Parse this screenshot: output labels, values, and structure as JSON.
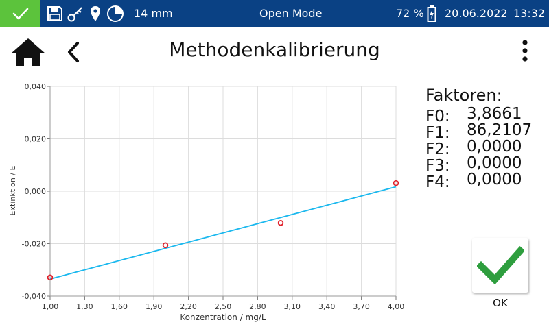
{
  "status_bar": {
    "ok_icon": "check-icon",
    "icons": [
      "save-icon",
      "key-icon",
      "location-pin-icon",
      "timer-pie-icon"
    ],
    "cuvette": "14 mm",
    "mode": "Open Mode",
    "battery_percent": "72 %",
    "battery_icon": "battery-charging-icon",
    "date": "20.06.2022",
    "time": "13:32",
    "colors": {
      "bar": "#0a4184",
      "ok": "#5cc33c"
    }
  },
  "header": {
    "title": "Methodenkalibrierung",
    "home_icon": "home-icon",
    "back_icon": "back-chevron-icon",
    "menu_icon": "more-vertical-icon"
  },
  "factors": {
    "title": "Faktoren:",
    "items": [
      {
        "label": "F0:",
        "value": "3,8661"
      },
      {
        "label": "F1:",
        "value": "86,2107"
      },
      {
        "label": "F2:",
        "value": "0,0000"
      },
      {
        "label": "F3:",
        "value": "0,0000"
      },
      {
        "label": "F4:",
        "value": "0,0000"
      }
    ]
  },
  "ok_button": {
    "label": "OK",
    "icon": "checkmark-icon",
    "color": "#2e9e3e"
  },
  "chart_data": {
    "type": "scatter",
    "xlabel": "Konzentration / mg/L",
    "ylabel": "Extinktion / E",
    "xlim": [
      1.0,
      4.0
    ],
    "ylim": [
      -0.04,
      0.04
    ],
    "x_ticks": [
      "1,00",
      "1,30",
      "1,60",
      "1,90",
      "2,20",
      "2,50",
      "2,80",
      "3,10",
      "3,40",
      "3,70",
      "4,00"
    ],
    "y_ticks": [
      "0,040",
      "0,020",
      "0,000",
      "-0,020",
      "-0,040"
    ],
    "points": [
      {
        "x": 1.0,
        "y": -0.0329
      },
      {
        "x": 2.0,
        "y": -0.0206
      },
      {
        "x": 3.0,
        "y": -0.0121
      },
      {
        "x": 4.0,
        "y": 0.0031
      }
    ],
    "fit_line": [
      {
        "x": 1.0,
        "y": -0.0335
      },
      {
        "x": 4.0,
        "y": 0.0017
      }
    ],
    "grid": true,
    "point_color": "#e0202a",
    "line_color": "#1ab8ee"
  }
}
